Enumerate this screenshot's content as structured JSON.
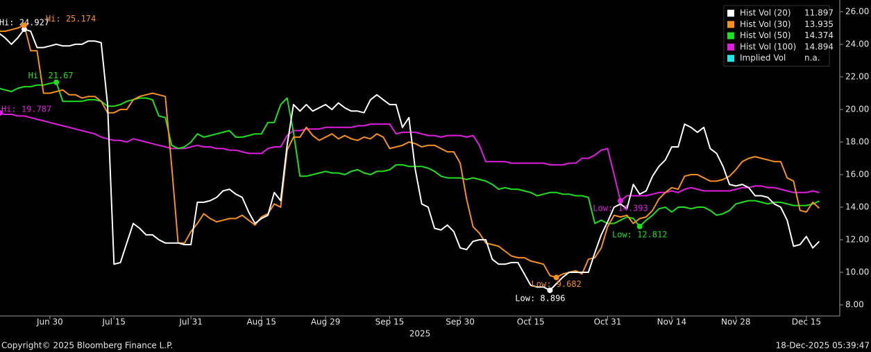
{
  "chart_data": {
    "type": "line",
    "categories": [
      null,
      null,
      null,
      null,
      null,
      null,
      null,
      null,
      "Jun 30",
      null,
      null,
      null,
      null,
      null,
      null,
      null,
      null,
      null,
      "Jul 15",
      null,
      null,
      null,
      null,
      null,
      null,
      null,
      null,
      null,
      null,
      null,
      "Jul 31",
      null,
      null,
      null,
      null,
      null,
      null,
      null,
      null,
      null,
      null,
      "Aug 15",
      null,
      null,
      null,
      null,
      null,
      null,
      null,
      null,
      null,
      "Aug 29",
      null,
      null,
      null,
      null,
      null,
      null,
      null,
      null,
      null,
      "Sep 15",
      null,
      null,
      null,
      null,
      null,
      null,
      null,
      null,
      null,
      null,
      "Sep 30",
      null,
      null,
      null,
      null,
      null,
      null,
      null,
      null,
      null,
      null,
      "Oct 15",
      null,
      null,
      null,
      null,
      null,
      null,
      null,
      null,
      null,
      null,
      null,
      "Oct 31",
      null,
      null,
      null,
      null,
      null,
      null,
      null,
      null,
      null,
      "Nov 14",
      null,
      null,
      null,
      null,
      null,
      null,
      null,
      null,
      null,
      "Nov 28",
      null,
      null,
      null,
      null,
      null,
      null,
      null,
      null,
      null,
      null,
      "Dec 15",
      null,
      null
    ],
    "x_year_label": "2025",
    "series": [
      {
        "name": "Hist Vol (20)",
        "color": "#ffffff",
        "high_label": "Hi: 24.927",
        "low_label": "Low: 8.896",
        "values": [
          24.7,
          24.4,
          24.0,
          24.4,
          24.927,
          24.8,
          23.8,
          23.8,
          23.9,
          24.0,
          23.9,
          23.9,
          24.0,
          24.0,
          24.2,
          24.2,
          24.1,
          20.3,
          10.5,
          10.6,
          11.8,
          13.0,
          12.7,
          12.3,
          12.3,
          12.0,
          11.8,
          11.8,
          11.8,
          11.7,
          11.7,
          14.3,
          14.3,
          14.4,
          14.6,
          15.0,
          15.1,
          14.8,
          14.6,
          13.7,
          13.0,
          13.3,
          13.5,
          14.9,
          14.4,
          17.8,
          20.3,
          19.9,
          20.3,
          19.9,
          20.1,
          20.3,
          20.0,
          20.4,
          20.1,
          19.9,
          19.9,
          19.8,
          20.6,
          20.9,
          20.6,
          20.3,
          20.3,
          18.9,
          19.5,
          16.3,
          14.2,
          14.0,
          12.7,
          12.6,
          12.9,
          12.5,
          11.5,
          11.4,
          11.9,
          12.0,
          12.0,
          10.8,
          10.5,
          10.5,
          10.6,
          10.6,
          9.9,
          9.2,
          9.1,
          9.1,
          8.896,
          9.3,
          9.7,
          10.0,
          10.0,
          10.0,
          10.0,
          11.2,
          12.3,
          13.1,
          14.0,
          14.2,
          13.9,
          15.4,
          14.8,
          15.0,
          15.9,
          16.5,
          16.9,
          17.7,
          17.7,
          19.1,
          18.9,
          18.6,
          18.9,
          17.6,
          17.3,
          16.5,
          15.4,
          15.3,
          15.4,
          15.2,
          14.7,
          14.7,
          14.6,
          14.2,
          14.0,
          13.2,
          11.6,
          11.7,
          12.2,
          11.5,
          11.897
        ]
      },
      {
        "name": "Hist Vol (30)",
        "color": "#f7901e",
        "high_label": "Hi: 25.174",
        "low_label": "Low: 9.682",
        "values": [
          24.8,
          24.8,
          24.9,
          25.0,
          25.174,
          23.6,
          23.6,
          21.0,
          21.0,
          21.1,
          21.2,
          20.9,
          20.9,
          20.7,
          20.8,
          20.8,
          20.5,
          19.8,
          19.8,
          20.0,
          20.0,
          20.6,
          20.8,
          20.9,
          21.0,
          20.9,
          20.8,
          16.5,
          11.8,
          11.8,
          12.5,
          13.0,
          13.6,
          13.3,
          13.1,
          13.2,
          13.3,
          13.3,
          13.5,
          13.2,
          12.9,
          13.4,
          13.6,
          14.2,
          14.0,
          17.5,
          18.3,
          18.3,
          18.9,
          18.4,
          18.1,
          18.3,
          18.5,
          18.2,
          18.4,
          18.2,
          18.1,
          18.3,
          18.2,
          18.5,
          18.3,
          17.6,
          17.7,
          17.8,
          18.0,
          17.9,
          17.7,
          17.8,
          17.8,
          17.6,
          17.4,
          17.4,
          16.7,
          14.5,
          12.8,
          12.4,
          11.8,
          11.7,
          11.6,
          11.3,
          11.0,
          10.9,
          10.9,
          10.7,
          10.6,
          10.5,
          9.8,
          9.682,
          9.9,
          10.0,
          10.1,
          9.9,
          10.8,
          10.9,
          11.5,
          12.8,
          13.5,
          13.4,
          13.5,
          13.0,
          13.3,
          13.4,
          13.8,
          14.5,
          14.9,
          15.2,
          15.1,
          15.9,
          16.0,
          16.0,
          15.8,
          15.6,
          15.6,
          15.7,
          15.9,
          16.3,
          16.8,
          17.0,
          17.1,
          17.0,
          16.9,
          16.8,
          16.8,
          15.8,
          15.6,
          13.8,
          13.7,
          14.3,
          13.935
        ]
      },
      {
        "name": "Hist Vol (50)",
        "color": "#1ee01e",
        "high_label": "Hi: 21.67",
        "low_label": "Low: 12.812",
        "values": [
          21.3,
          21.2,
          21.1,
          21.3,
          21.4,
          21.4,
          21.5,
          21.5,
          21.6,
          21.67,
          20.5,
          20.5,
          20.5,
          20.5,
          20.6,
          20.6,
          20.5,
          20.2,
          20.2,
          20.3,
          20.5,
          20.6,
          20.7,
          20.7,
          20.6,
          19.6,
          19.5,
          17.8,
          17.6,
          17.7,
          18.0,
          18.5,
          18.3,
          18.4,
          18.5,
          18.6,
          18.7,
          18.3,
          18.3,
          18.4,
          18.5,
          18.5,
          19.2,
          19.2,
          20.3,
          20.7,
          18.6,
          15.9,
          15.9,
          16.0,
          16.1,
          16.2,
          16.1,
          16.1,
          16.0,
          16.2,
          16.3,
          16.1,
          16.0,
          16.2,
          16.2,
          16.3,
          16.6,
          16.6,
          16.5,
          16.5,
          16.5,
          16.4,
          16.2,
          15.9,
          15.8,
          15.8,
          15.8,
          15.7,
          15.8,
          15.7,
          15.6,
          15.4,
          15.1,
          15.2,
          15.1,
          15.1,
          15.0,
          14.9,
          14.7,
          14.8,
          14.9,
          14.9,
          14.8,
          14.8,
          14.7,
          14.7,
          14.6,
          13.0,
          13.2,
          13.0,
          13.0,
          13.2,
          13.4,
          13.3,
          12.812,
          13.2,
          13.5,
          13.9,
          14.0,
          13.7,
          14.0,
          14.0,
          13.9,
          14.0,
          14.0,
          13.8,
          13.5,
          13.6,
          13.8,
          14.2,
          14.3,
          14.4,
          14.4,
          14.3,
          14.2,
          14.3,
          14.3,
          14.2,
          14.1,
          14.1,
          14.1,
          14.2,
          14.374
        ]
      },
      {
        "name": "Hist Vol (100)",
        "color": "#e01ee0",
        "high_label": "Hi: 19.787",
        "low_label": "Low: 14.393",
        "values": [
          19.787,
          19.7,
          19.7,
          19.6,
          19.6,
          19.5,
          19.4,
          19.3,
          19.2,
          19.1,
          19.0,
          18.9,
          18.8,
          18.7,
          18.6,
          18.5,
          18.3,
          18.2,
          18.1,
          18.1,
          18.0,
          18.2,
          18.1,
          18.0,
          17.9,
          17.8,
          17.7,
          17.6,
          17.6,
          17.6,
          17.7,
          17.8,
          17.7,
          17.7,
          17.6,
          17.6,
          17.5,
          17.5,
          17.4,
          17.3,
          17.3,
          17.3,
          17.6,
          17.7,
          17.7,
          18.4,
          18.7,
          18.7,
          18.8,
          18.8,
          18.8,
          18.9,
          18.9,
          18.9,
          18.9,
          18.9,
          19.0,
          19.0,
          19.1,
          19.1,
          19.1,
          19.1,
          18.5,
          18.6,
          18.6,
          18.6,
          18.5,
          18.4,
          18.4,
          18.3,
          18.4,
          18.4,
          18.4,
          18.3,
          18.4,
          17.8,
          16.8,
          16.8,
          16.8,
          16.8,
          16.7,
          16.7,
          16.7,
          16.7,
          16.7,
          16.7,
          16.6,
          16.6,
          16.6,
          16.7,
          16.7,
          17.0,
          17.0,
          17.2,
          17.5,
          17.6,
          16.0,
          14.393,
          14.7,
          14.7,
          14.7,
          14.7,
          14.8,
          14.9,
          14.9,
          15.0,
          14.9,
          15.1,
          15.2,
          15.1,
          15.0,
          15.0,
          15.0,
          15.0,
          15.0,
          15.1,
          15.2,
          15.2,
          15.3,
          15.3,
          15.2,
          15.2,
          15.1,
          15.0,
          14.9,
          14.9,
          14.9,
          15.0,
          14.894
        ]
      }
    ],
    "legend_extra": {
      "name": "Implied Vol",
      "color": "#1ee8e8",
      "value_label": "n.a."
    },
    "ylim": [
      7.32,
      26.38
    ],
    "yticks": [
      {
        "value": 26,
        "label": "26.00"
      },
      {
        "value": 24,
        "label": "24.00"
      },
      {
        "value": 22,
        "label": "22.00"
      },
      {
        "value": 20,
        "label": "20.00"
      },
      {
        "value": 18,
        "label": "18.00"
      },
      {
        "value": 16,
        "label": "16.00"
      },
      {
        "value": 14,
        "label": "14.00"
      },
      {
        "value": 12,
        "label": "12.00"
      },
      {
        "value": 10,
        "label": "10.00"
      },
      {
        "value": 8,
        "label": "8.00"
      }
    ],
    "y_axis_side": "right",
    "grid": false,
    "legend_position": "top-right",
    "copyright": "Copyright© 2025 Bloomberg Finance L.P.",
    "timestamp": "18-Dec-2025 05:39:47"
  }
}
